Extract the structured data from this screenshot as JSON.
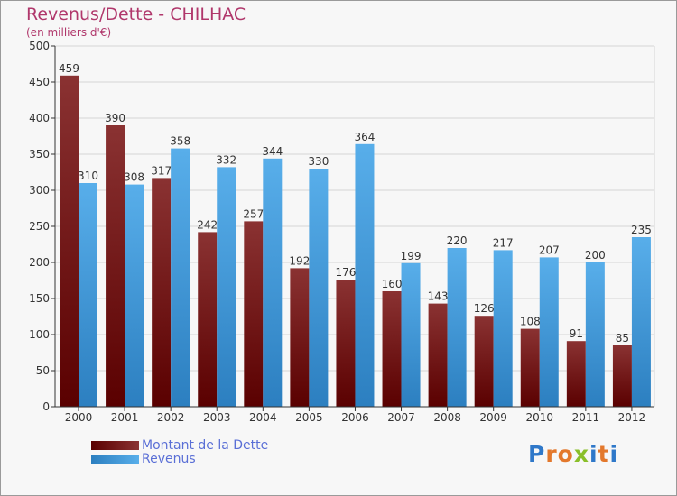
{
  "title": "Revenus/Dette - CHILHAC",
  "subtitle": "(en milliers d'€)",
  "logo": {
    "letters": [
      "P",
      "r",
      "o",
      "x",
      "i",
      "t",
      "i"
    ],
    "colors": [
      "#2f78c9",
      "#e3782c",
      "#e3782c",
      "#8abf2a",
      "#2f78c9",
      "#e3782c",
      "#2f78c9"
    ]
  },
  "chart_data": {
    "type": "bar",
    "title": "Revenus/Dette - CHILHAC",
    "ylabel": "(en milliers d'€)",
    "xlabel": "",
    "ylim": [
      0,
      500
    ],
    "yticks": [
      0,
      50,
      100,
      150,
      200,
      250,
      300,
      350,
      400,
      450,
      500
    ],
    "grid": true,
    "legend_position": "bottom-left",
    "categories": [
      "2000",
      "2001",
      "2002",
      "2003",
      "2004",
      "2005",
      "2006",
      "2007",
      "2008",
      "2009",
      "2010",
      "2011",
      "2012"
    ],
    "series": [
      {
        "name": "Montant de la Dette",
        "color": "#7a1d1d",
        "values": [
          459,
          390,
          317,
          242,
          257,
          192,
          176,
          160,
          143,
          126,
          108,
          91,
          85
        ]
      },
      {
        "name": "Revenus",
        "color": "#4aa3e6",
        "values": [
          310,
          308,
          358,
          332,
          344,
          330,
          364,
          199,
          220,
          217,
          207,
          200,
          235
        ]
      }
    ]
  }
}
